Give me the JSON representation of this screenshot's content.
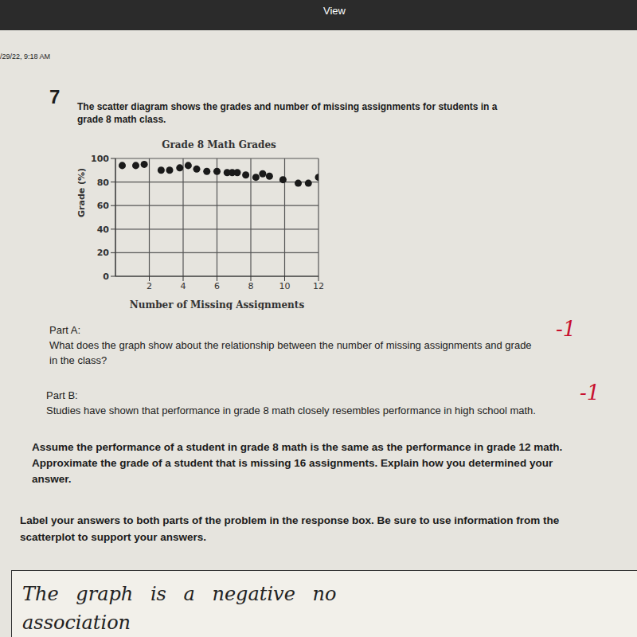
{
  "header": {
    "app": "View",
    "timestamp": "/29/22, 9:18 AM"
  },
  "question": {
    "number": "7",
    "intro": "The scatter diagram shows the grades and number of missing assignments for students in a grade 8 math class."
  },
  "chart_data": {
    "type": "scatter",
    "title": "Grade 8 Math Grades",
    "x_label": "Number of Missing Assignments",
    "y_label": "Grade (%)",
    "x": [
      0.4,
      1.2,
      1.7,
      2.7,
      3.2,
      3.8,
      4.3,
      4.8,
      5.4,
      6.0,
      6.6,
      6.9,
      7.2,
      7.7,
      8.3,
      8.7,
      9.1,
      9.9,
      10.8,
      11.4,
      12.0
    ],
    "values": [
      94,
      94,
      95,
      90,
      90,
      92,
      94,
      91,
      89,
      89,
      88,
      88,
      88,
      86,
      84,
      87,
      85,
      82,
      79,
      79,
      84
    ],
    "xlim": [
      0,
      12
    ],
    "ylim": [
      0,
      100
    ],
    "xticks": [
      2,
      4,
      6,
      8,
      10,
      12
    ],
    "yticks": [
      0,
      20,
      40,
      60,
      80,
      100
    ],
    "grid": true,
    "color": "#1a1a1a",
    "marker": "circle"
  },
  "part_a": {
    "label": "Part A:",
    "text": "What does the graph show about the relationship between the number of missing assignments and grade in the class?",
    "score": "-1"
  },
  "part_b": {
    "label": "Part B:",
    "text": "Studies have shown that performance in grade 8 math closely resembles performance in high school math.",
    "task": "Assume the performance of a student in grade 8 math is the same as the performance in grade 12 math. Approximate the grade of a student that is missing 16 assignments. Explain how you determined your answer.",
    "score": "-1"
  },
  "instructions": "Label your answers to both parts of the problem in the response box. Be sure to use information from the scatterplot to support your answers.",
  "response": [
    "The graph is a negative no",
    "association"
  ]
}
